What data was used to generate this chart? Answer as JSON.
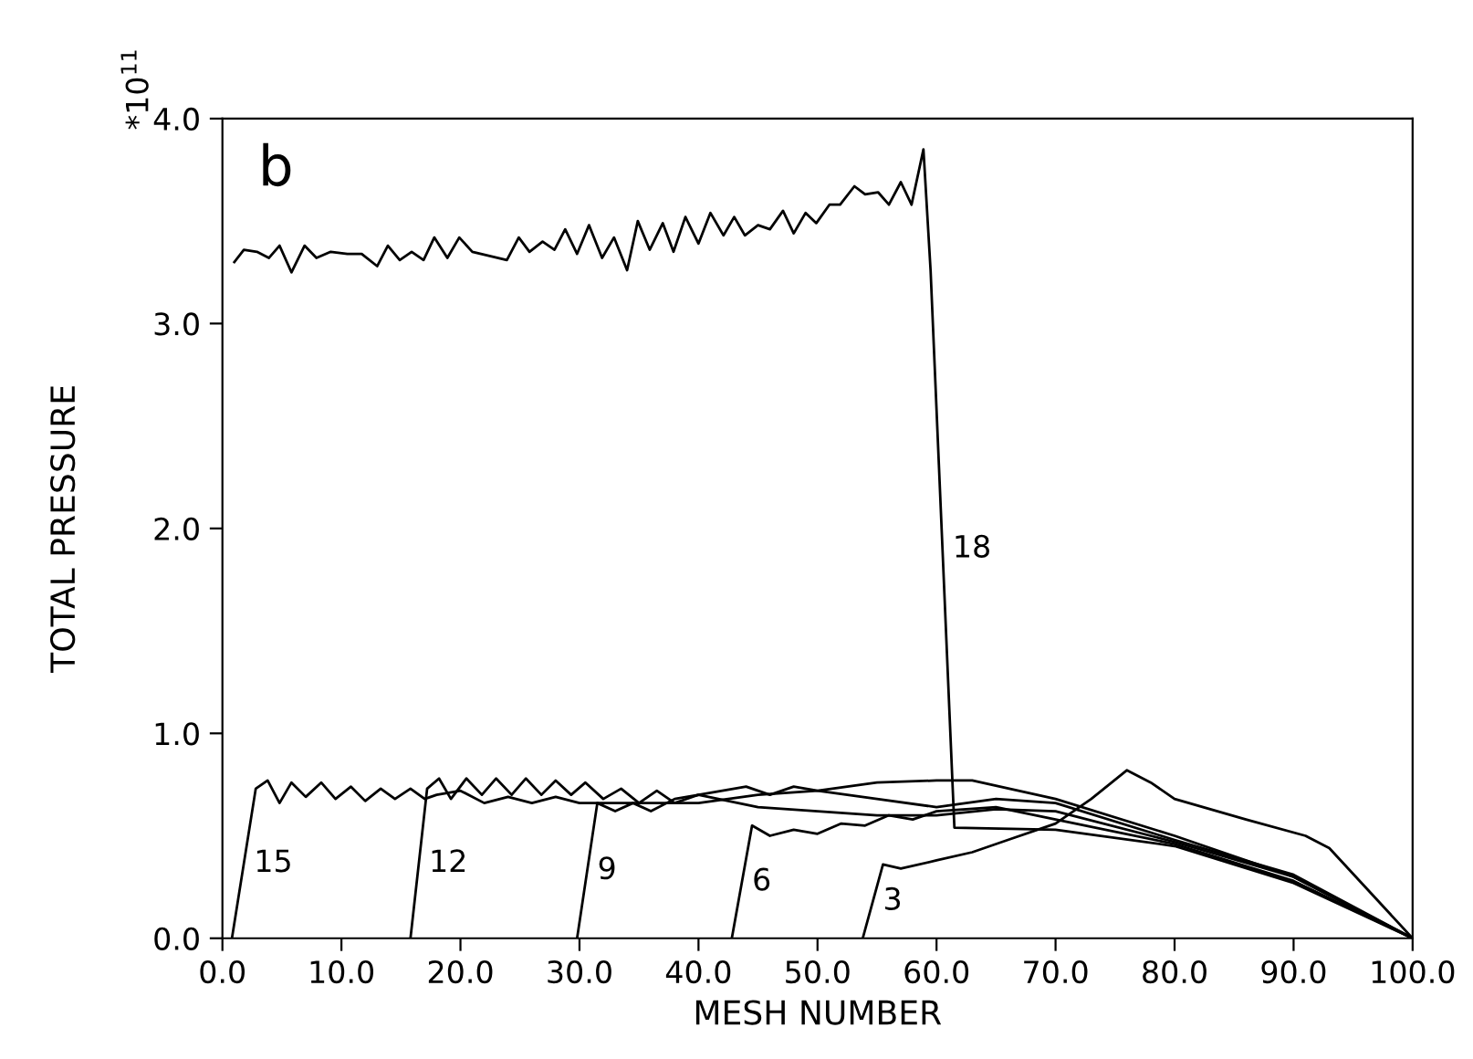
{
  "chart_data": {
    "type": "line",
    "xlabel": "MESH NUMBER",
    "ylabel": "TOTAL PRESSURE",
    "annotations": [
      "b",
      "*10$^{11}$"
    ],
    "xlim": [
      0,
      100
    ],
    "ylim": [
      0,
      4.0
    ],
    "xticks": [
      {
        "value": 0,
        "label": "0.0"
      },
      {
        "value": 10,
        "label": "10.0"
      },
      {
        "value": 20,
        "label": "20.0"
      },
      {
        "value": 30,
        "label": "30.0"
      },
      {
        "value": 40,
        "label": "40.0"
      },
      {
        "value": 50,
        "label": "50.0"
      },
      {
        "value": 60,
        "label": "60.0"
      },
      {
        "value": 70,
        "label": "70.0"
      },
      {
        "value": 80,
        "label": "80.0"
      },
      {
        "value": 90,
        "label": "90.0"
      },
      {
        "value": 100,
        "label": "100.0"
      }
    ],
    "yticks": [
      {
        "value": 0,
        "label": "0.0"
      },
      {
        "value": 1,
        "label": "1.0"
      },
      {
        "value": 2,
        "label": "2.0"
      },
      {
        "value": 3,
        "label": "3.0"
      },
      {
        "value": 4,
        "label": "4.0"
      }
    ],
    "grid": false,
    "marker": "none",
    "line_style": "solid",
    "series": [
      {
        "name": "18",
        "color": "#000000",
        "x": [
          1.0,
          1.8,
          2.9,
          3.9,
          4.8,
          5.8,
          6.9,
          7.9,
          9.1,
          10.5,
          11.7,
          13.0,
          13.9,
          14.9,
          15.9,
          16.9,
          17.8,
          18.9,
          19.9,
          21.0,
          23.9,
          24.9,
          25.8,
          26.9,
          27.9,
          28.8,
          29.8,
          30.8,
          31.9,
          32.9,
          34.0,
          34.9,
          35.9,
          37.0,
          37.9,
          38.9,
          40.0,
          41.0,
          42.1,
          43.0,
          43.9,
          45.0,
          46.0,
          47.1,
          48.0,
          49.0,
          49.9,
          51.0,
          51.9,
          53.1,
          54.0,
          55.1,
          56.0,
          57.0,
          57.9,
          58.9,
          59.5,
          61.5,
          70,
          80,
          90,
          100
        ],
        "values": [
          3.3,
          3.36,
          3.35,
          3.32,
          3.38,
          3.25,
          3.38,
          3.32,
          3.35,
          3.34,
          3.34,
          3.28,
          3.38,
          3.31,
          3.35,
          3.31,
          3.42,
          3.32,
          3.42,
          3.35,
          3.31,
          3.42,
          3.35,
          3.4,
          3.36,
          3.46,
          3.34,
          3.48,
          3.32,
          3.42,
          3.26,
          3.5,
          3.36,
          3.49,
          3.35,
          3.52,
          3.39,
          3.54,
          3.43,
          3.52,
          3.43,
          3.48,
          3.46,
          3.55,
          3.44,
          3.54,
          3.49,
          3.58,
          3.58,
          3.67,
          3.63,
          3.64,
          3.58,
          3.69,
          3.58,
          3.85,
          3.26,
          0.54,
          0.53,
          0.45,
          0.27,
          0
        ]
      },
      {
        "name": "15",
        "color": "#000000",
        "x": [
          0.8,
          2.8,
          3.8,
          4.8,
          5.8,
          7,
          8.3,
          9.5,
          10.8,
          12,
          13.3,
          14.5,
          15.8,
          17,
          18,
          20,
          22,
          24,
          26,
          28,
          30,
          35,
          40,
          45,
          50,
          55,
          60,
          63,
          70,
          80,
          90,
          100
        ],
        "values": [
          0,
          0.73,
          0.77,
          0.66,
          0.76,
          0.69,
          0.76,
          0.68,
          0.74,
          0.67,
          0.73,
          0.68,
          0.73,
          0.68,
          0.7,
          0.72,
          0.66,
          0.69,
          0.66,
          0.69,
          0.66,
          0.66,
          0.66,
          0.7,
          0.72,
          0.76,
          0.77,
          0.77,
          0.68,
          0.5,
          0.3,
          0
        ]
      },
      {
        "name": "12",
        "color": "#000000",
        "x": [
          15.8,
          17.2,
          18.2,
          19.2,
          20.5,
          21.8,
          23,
          24.3,
          25.5,
          26.8,
          28,
          29.3,
          30.5,
          32,
          33.5,
          35,
          36.5,
          38,
          40,
          45,
          50,
          55,
          60,
          65,
          70,
          80,
          90,
          100
        ],
        "values": [
          0,
          0.73,
          0.78,
          0.68,
          0.78,
          0.7,
          0.78,
          0.7,
          0.78,
          0.7,
          0.77,
          0.7,
          0.76,
          0.68,
          0.73,
          0.66,
          0.72,
          0.66,
          0.7,
          0.64,
          0.62,
          0.6,
          0.6,
          0.63,
          0.62,
          0.47,
          0.3,
          0
        ]
      },
      {
        "name": "9",
        "color": "#000000",
        "x": [
          29.8,
          31.5,
          33,
          34.5,
          36,
          38,
          40,
          42,
          44,
          46,
          48,
          50,
          55,
          60,
          65,
          70,
          80,
          90,
          100
        ],
        "values": [
          0,
          0.66,
          0.62,
          0.66,
          0.62,
          0.68,
          0.7,
          0.72,
          0.74,
          0.7,
          0.74,
          0.72,
          0.68,
          0.64,
          0.68,
          0.66,
          0.48,
          0.31,
          0
        ]
      },
      {
        "name": "6",
        "color": "#000000",
        "x": [
          42.8,
          44.5,
          46,
          48,
          50,
          52,
          54,
          56,
          58,
          60,
          65,
          70,
          80,
          90,
          100
        ],
        "values": [
          0,
          0.55,
          0.5,
          0.53,
          0.51,
          0.56,
          0.55,
          0.6,
          0.58,
          0.62,
          0.64,
          0.58,
          0.46,
          0.28,
          0
        ]
      },
      {
        "name": "3",
        "color": "#000000",
        "x": [
          53.8,
          55.5,
          57,
          60,
          63,
          66,
          70,
          73,
          76,
          78,
          80,
          86,
          91,
          93,
          100
        ],
        "values": [
          0,
          0.36,
          0.34,
          0.38,
          0.42,
          0.48,
          0.56,
          0.68,
          0.82,
          0.76,
          0.68,
          0.58,
          0.5,
          0.44,
          0
        ]
      }
    ]
  }
}
